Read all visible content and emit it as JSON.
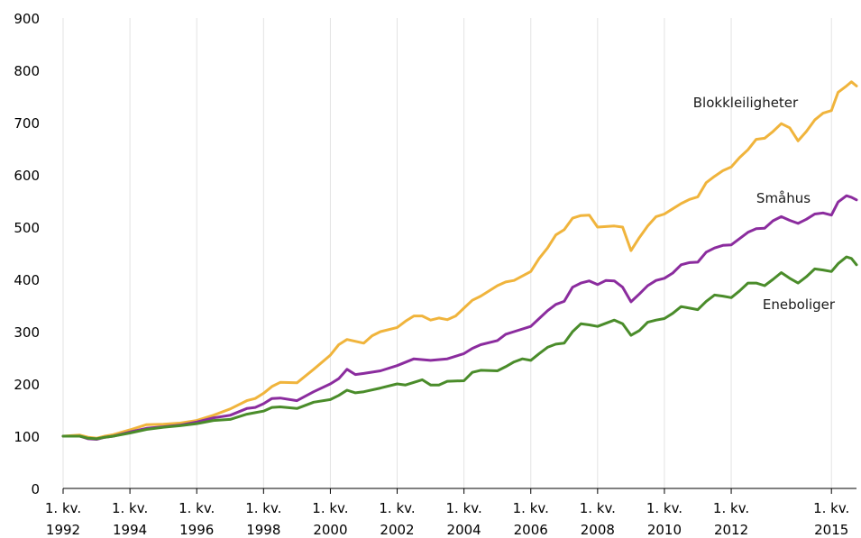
{
  "chart_data": {
    "type": "line",
    "title": "",
    "xlabel": "",
    "ylabel": "",
    "ylim": [
      0,
      900
    ],
    "yticks": [
      0,
      100,
      200,
      300,
      400,
      500,
      600,
      700,
      800,
      900
    ],
    "xlim": [
      1992.0,
      2015.75
    ],
    "xticks": [
      {
        "x": 1992,
        "top": "1. kv.",
        "bottom": "1992"
      },
      {
        "x": 1994,
        "top": "1. kv.",
        "bottom": "1994"
      },
      {
        "x": 1996,
        "top": "1. kv.",
        "bottom": "1996"
      },
      {
        "x": 1998,
        "top": "1. kv.",
        "bottom": "1998"
      },
      {
        "x": 2000,
        "top": "1. kv.",
        "bottom": "2000"
      },
      {
        "x": 2002,
        "top": "1. kv.",
        "bottom": "2002"
      },
      {
        "x": 2004,
        "top": "1. kv.",
        "bottom": "2004"
      },
      {
        "x": 2006,
        "top": "1. kv.",
        "bottom": "2006"
      },
      {
        "x": 2008,
        "top": "1. kv.",
        "bottom": "2008"
      },
      {
        "x": 2010,
        "top": "1. kv.",
        "bottom": "2010"
      },
      {
        "x": 2012,
        "top": "1. kv.",
        "bottom": "2012"
      },
      {
        "x": 2015,
        "top": "1. kv.",
        "bottom": "2015"
      }
    ],
    "grid": "vertical",
    "legend": "inline labels",
    "series": [
      {
        "name": "Blokkleiligheter",
        "color": "#f0b43c",
        "points": [
          [
            1992.0,
            100
          ],
          [
            1992.5,
            102
          ],
          [
            1992.75,
            98
          ],
          [
            1993.0,
            96
          ],
          [
            1993.25,
            100
          ],
          [
            1993.5,
            103
          ],
          [
            1994.0,
            112
          ],
          [
            1994.5,
            122
          ],
          [
            1995.0,
            123
          ],
          [
            1995.5,
            125
          ],
          [
            1996.0,
            130
          ],
          [
            1996.5,
            140
          ],
          [
            1997.0,
            152
          ],
          [
            1997.5,
            168
          ],
          [
            1997.75,
            172
          ],
          [
            1998.0,
            182
          ],
          [
            1998.25,
            195
          ],
          [
            1998.5,
            203
          ],
          [
            1999.0,
            202
          ],
          [
            1999.5,
            228
          ],
          [
            2000.0,
            255
          ],
          [
            2000.25,
            275
          ],
          [
            2000.5,
            285
          ],
          [
            2001.0,
            278
          ],
          [
            2001.25,
            292
          ],
          [
            2001.5,
            300
          ],
          [
            2002.0,
            308
          ],
          [
            2002.25,
            320
          ],
          [
            2002.5,
            330
          ],
          [
            2002.75,
            330
          ],
          [
            2003.0,
            322
          ],
          [
            2003.25,
            326
          ],
          [
            2003.5,
            323
          ],
          [
            2003.75,
            330
          ],
          [
            2004.0,
            345
          ],
          [
            2004.25,
            360
          ],
          [
            2004.5,
            368
          ],
          [
            2005.0,
            388
          ],
          [
            2005.25,
            395
          ],
          [
            2005.5,
            398
          ],
          [
            2006.0,
            415
          ],
          [
            2006.25,
            440
          ],
          [
            2006.5,
            460
          ],
          [
            2006.75,
            485
          ],
          [
            2007.0,
            495
          ],
          [
            2007.25,
            517
          ],
          [
            2007.5,
            522
          ],
          [
            2007.75,
            523
          ],
          [
            2008.0,
            500
          ],
          [
            2008.5,
            502
          ],
          [
            2008.75,
            500
          ],
          [
            2009.0,
            455
          ],
          [
            2009.25,
            480
          ],
          [
            2009.5,
            502
          ],
          [
            2009.75,
            520
          ],
          [
            2010.0,
            525
          ],
          [
            2010.25,
            535
          ],
          [
            2010.5,
            545
          ],
          [
            2010.75,
            553
          ],
          [
            2011.0,
            558
          ],
          [
            2011.25,
            585
          ],
          [
            2011.5,
            597
          ],
          [
            2011.75,
            608
          ],
          [
            2012.0,
            615
          ],
          [
            2012.25,
            633
          ],
          [
            2012.5,
            648
          ],
          [
            2012.75,
            668
          ],
          [
            2013.0,
            670
          ],
          [
            2013.25,
            683
          ],
          [
            2013.5,
            698
          ],
          [
            2013.75,
            690
          ],
          [
            2014.0,
            665
          ],
          [
            2014.25,
            683
          ],
          [
            2014.5,
            705
          ],
          [
            2014.75,
            718
          ],
          [
            2015.0,
            723
          ],
          [
            2015.2,
            758
          ],
          [
            2015.45,
            770
          ],
          [
            2015.6,
            778
          ],
          [
            2015.75,
            770
          ]
        ]
      },
      {
        "name": "Småhus",
        "color": "#8b2c9e",
        "points": [
          [
            1992.0,
            100
          ],
          [
            1992.5,
            100
          ],
          [
            1992.75,
            95
          ],
          [
            1993.0,
            94
          ],
          [
            1993.25,
            98
          ],
          [
            1993.5,
            100
          ],
          [
            1994.0,
            108
          ],
          [
            1994.5,
            115
          ],
          [
            1995.0,
            118
          ],
          [
            1995.5,
            121
          ],
          [
            1996.0,
            127
          ],
          [
            1996.5,
            135
          ],
          [
            1997.0,
            140
          ],
          [
            1997.5,
            153
          ],
          [
            1997.75,
            155
          ],
          [
            1998.0,
            162
          ],
          [
            1998.25,
            172
          ],
          [
            1998.5,
            173
          ],
          [
            1999.0,
            168
          ],
          [
            1999.5,
            185
          ],
          [
            2000.0,
            200
          ],
          [
            2000.25,
            210
          ],
          [
            2000.5,
            228
          ],
          [
            2000.75,
            218
          ],
          [
            2001.0,
            220
          ],
          [
            2001.5,
            225
          ],
          [
            2002.0,
            235
          ],
          [
            2002.5,
            248
          ],
          [
            2003.0,
            245
          ],
          [
            2003.5,
            248
          ],
          [
            2004.0,
            258
          ],
          [
            2004.25,
            268
          ],
          [
            2004.5,
            275
          ],
          [
            2005.0,
            283
          ],
          [
            2005.25,
            295
          ],
          [
            2005.5,
            300
          ],
          [
            2006.0,
            310
          ],
          [
            2006.25,
            325
          ],
          [
            2006.5,
            340
          ],
          [
            2006.75,
            352
          ],
          [
            2007.0,
            358
          ],
          [
            2007.25,
            385
          ],
          [
            2007.5,
            393
          ],
          [
            2007.75,
            397
          ],
          [
            2008.0,
            390
          ],
          [
            2008.25,
            398
          ],
          [
            2008.5,
            397
          ],
          [
            2008.75,
            385
          ],
          [
            2009.0,
            357
          ],
          [
            2009.25,
            372
          ],
          [
            2009.5,
            388
          ],
          [
            2009.75,
            398
          ],
          [
            2010.0,
            402
          ],
          [
            2010.25,
            412
          ],
          [
            2010.5,
            428
          ],
          [
            2010.75,
            432
          ],
          [
            2011.0,
            433
          ],
          [
            2011.25,
            452
          ],
          [
            2011.5,
            460
          ],
          [
            2011.75,
            465
          ],
          [
            2012.0,
            466
          ],
          [
            2012.25,
            478
          ],
          [
            2012.5,
            490
          ],
          [
            2012.75,
            497
          ],
          [
            2013.0,
            498
          ],
          [
            2013.25,
            512
          ],
          [
            2013.5,
            520
          ],
          [
            2013.75,
            513
          ],
          [
            2014.0,
            507
          ],
          [
            2014.25,
            515
          ],
          [
            2014.5,
            525
          ],
          [
            2014.75,
            527
          ],
          [
            2015.0,
            523
          ],
          [
            2015.2,
            548
          ],
          [
            2015.45,
            560
          ],
          [
            2015.6,
            557
          ],
          [
            2015.75,
            552
          ]
        ]
      },
      {
        "name": "Eneboliger",
        "color": "#4a8c2a",
        "points": [
          [
            1992.0,
            100
          ],
          [
            1992.5,
            100
          ],
          [
            1992.75,
            96
          ],
          [
            1993.0,
            95
          ],
          [
            1993.25,
            98
          ],
          [
            1993.5,
            100
          ],
          [
            1994.0,
            106
          ],
          [
            1994.5,
            113
          ],
          [
            1995.0,
            117
          ],
          [
            1995.5,
            120
          ],
          [
            1996.0,
            124
          ],
          [
            1996.5,
            130
          ],
          [
            1997.0,
            132
          ],
          [
            1997.5,
            142
          ],
          [
            1997.75,
            145
          ],
          [
            1998.0,
            148
          ],
          [
            1998.25,
            155
          ],
          [
            1998.5,
            156
          ],
          [
            1999.0,
            153
          ],
          [
            1999.5,
            165
          ],
          [
            2000.0,
            170
          ],
          [
            2000.25,
            178
          ],
          [
            2000.5,
            188
          ],
          [
            2000.75,
            183
          ],
          [
            2001.0,
            185
          ],
          [
            2001.5,
            192
          ],
          [
            2002.0,
            200
          ],
          [
            2002.25,
            198
          ],
          [
            2002.5,
            203
          ],
          [
            2002.75,
            208
          ],
          [
            2003.0,
            198
          ],
          [
            2003.25,
            198
          ],
          [
            2003.5,
            205
          ],
          [
            2004.0,
            206
          ],
          [
            2004.25,
            222
          ],
          [
            2004.5,
            226
          ],
          [
            2005.0,
            225
          ],
          [
            2005.25,
            233
          ],
          [
            2005.5,
            242
          ],
          [
            2005.75,
            248
          ],
          [
            2006.0,
            245
          ],
          [
            2006.25,
            258
          ],
          [
            2006.5,
            270
          ],
          [
            2006.75,
            276
          ],
          [
            2007.0,
            278
          ],
          [
            2007.25,
            300
          ],
          [
            2007.5,
            315
          ],
          [
            2007.75,
            313
          ],
          [
            2008.0,
            310
          ],
          [
            2008.25,
            316
          ],
          [
            2008.5,
            322
          ],
          [
            2008.75,
            315
          ],
          [
            2009.0,
            293
          ],
          [
            2009.25,
            302
          ],
          [
            2009.5,
            318
          ],
          [
            2009.75,
            322
          ],
          [
            2010.0,
            325
          ],
          [
            2010.25,
            335
          ],
          [
            2010.5,
            348
          ],
          [
            2010.75,
            345
          ],
          [
            2011.0,
            342
          ],
          [
            2011.25,
            358
          ],
          [
            2011.5,
            370
          ],
          [
            2011.75,
            368
          ],
          [
            2012.0,
            365
          ],
          [
            2012.25,
            378
          ],
          [
            2012.5,
            393
          ],
          [
            2012.75,
            393
          ],
          [
            2013.0,
            388
          ],
          [
            2013.25,
            400
          ],
          [
            2013.5,
            413
          ],
          [
            2013.75,
            402
          ],
          [
            2014.0,
            393
          ],
          [
            2014.25,
            405
          ],
          [
            2014.5,
            420
          ],
          [
            2014.75,
            418
          ],
          [
            2015.0,
            415
          ],
          [
            2015.2,
            430
          ],
          [
            2015.45,
            443
          ],
          [
            2015.6,
            440
          ],
          [
            2015.75,
            428
          ]
        ]
      }
    ]
  }
}
